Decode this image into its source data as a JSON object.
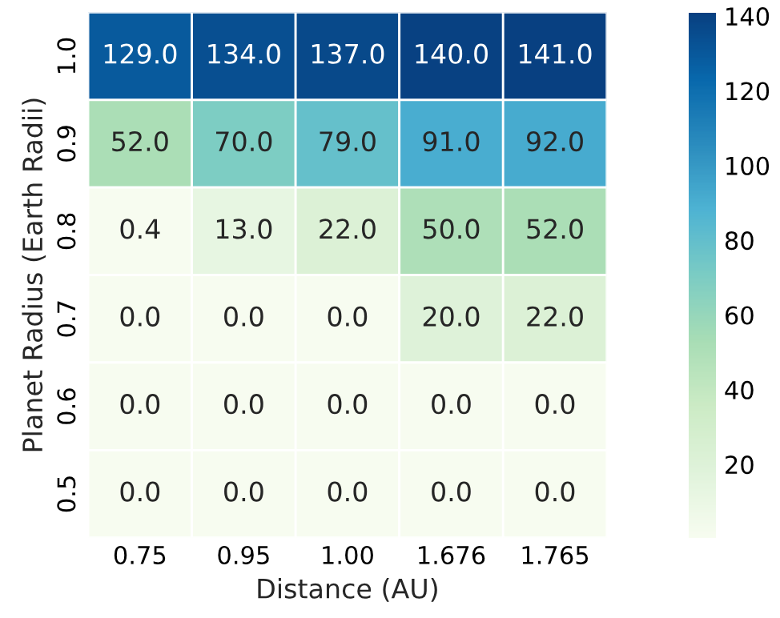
{
  "chart_data": {
    "type": "heatmap",
    "xlabel": "Distance (AU)",
    "ylabel": "Planet Radius (Earth Radii)",
    "categories": [
      "0.75",
      "0.95",
      "1.00",
      "1.676",
      "1.765"
    ],
    "y_categories": [
      "1.0",
      "0.9",
      "0.8",
      "0.7",
      "0.6",
      "0.5"
    ],
    "cells": [
      [
        129.0,
        134.0,
        137.0,
        140.0,
        141.0
      ],
      [
        52.0,
        70.0,
        79.0,
        91.0,
        92.0
      ],
      [
        0.4,
        13.0,
        22.0,
        50.0,
        52.0
      ],
      [
        0.0,
        0.0,
        0.0,
        20.0,
        22.0
      ],
      [
        0.0,
        0.0,
        0.0,
        0.0,
        0.0
      ],
      [
        0.0,
        0.0,
        0.0,
        0.0,
        0.0
      ]
    ],
    "cell_labels": [
      [
        "129.0",
        "134.0",
        "137.0",
        "140.0",
        "141.0"
      ],
      [
        "52.0",
        "70.0",
        "79.0",
        "91.0",
        "92.0"
      ],
      [
        "0.4",
        "13.0",
        "22.0",
        "50.0",
        "52.0"
      ],
      [
        "0.0",
        "0.0",
        "0.0",
        "20.0",
        "22.0"
      ],
      [
        "0.0",
        "0.0",
        "0.0",
        "0.0",
        "0.0"
      ],
      [
        "0.0",
        "0.0",
        "0.0",
        "0.0",
        "0.0"
      ]
    ],
    "clim": [
      0.4,
      141
    ],
    "cticks": [
      20,
      40,
      60,
      80,
      100,
      120,
      140
    ]
  }
}
